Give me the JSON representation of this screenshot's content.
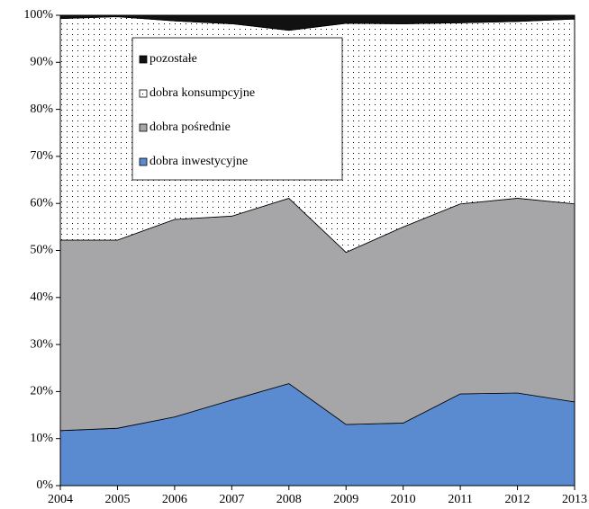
{
  "chart_data": {
    "type": "stacked-area",
    "categories": [
      "2004",
      "2005",
      "2006",
      "2007",
      "2008",
      "2009",
      "2010",
      "2011",
      "2012",
      "2013"
    ],
    "series": [
      {
        "name": "dobra inwestycyjne",
        "color": "#5a8ad0",
        "values": [
          11.7,
          12.2,
          14.6,
          18.2,
          21.7,
          13.0,
          13.3,
          19.5,
          19.7,
          17.8
        ]
      },
      {
        "name": "dobra pośrednie",
        "color": "#a6a6a9",
        "values": [
          40.5,
          40.0,
          42.0,
          39.1,
          39.4,
          36.6,
          41.7,
          40.4,
          41.4,
          42.1
        ]
      },
      {
        "name": "dobra konsumpcyjne",
        "color": "#ffffff",
        "fill": "dots",
        "values": [
          47.1,
          47.5,
          42.2,
          40.9,
          35.7,
          48.7,
          43.2,
          38.5,
          37.6,
          39.3
        ]
      },
      {
        "name": "pozostałe",
        "color": "#111111",
        "values": [
          0.7,
          0.3,
          1.2,
          1.8,
          3.2,
          1.7,
          1.8,
          1.6,
          1.3,
          0.8
        ]
      }
    ],
    "ylim": [
      0,
      100
    ],
    "yticks": [
      {
        "value": 0,
        "label": "0%"
      },
      {
        "value": 10,
        "label": "10%"
      },
      {
        "value": 20,
        "label": "20%"
      },
      {
        "value": 30,
        "label": "30%"
      },
      {
        "value": 40,
        "label": "40%"
      },
      {
        "value": 50,
        "label": "50%"
      },
      {
        "value": 60,
        "label": "60%"
      },
      {
        "value": 70,
        "label": "70%"
      },
      {
        "value": 80,
        "label": "80%"
      },
      {
        "value": 90,
        "label": "90%"
      },
      {
        "value": 100,
        "label": "100%"
      }
    ],
    "legend": "top-left"
  }
}
